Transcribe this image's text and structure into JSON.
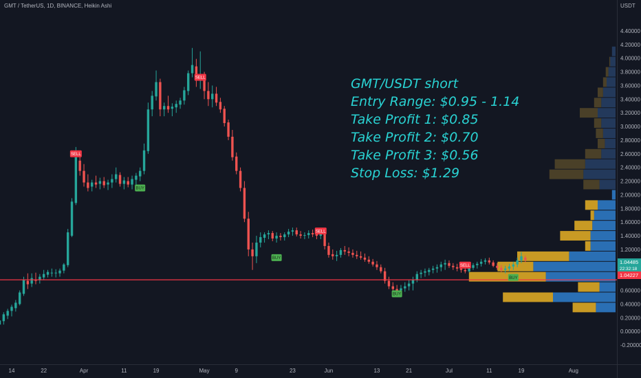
{
  "header": {
    "symbol_line": "GMT / TetherUS, 1D, BINANCE, Heikin Ashi",
    "unit": "USDT"
  },
  "annotation": {
    "lines": [
      "GMT/USDT short",
      "Entry Range: $0.95 - 1.14",
      "Take Profit 1: $0.85",
      "Take Profit 2: $0.70",
      "Take Profit 3: $0.56",
      "Stop Loss: $1.29"
    ]
  },
  "price_tags": {
    "current_price": "1.04485",
    "countdown": "22:32:18",
    "secondary_price": "1.04227"
  },
  "colors": {
    "background": "#131722",
    "up": "#26a69a",
    "down": "#ef5350",
    "support_line": "#f23645",
    "note_text": "#2ad4d4",
    "vp_up": "#2a6fb4",
    "vp_down": "#c89a24",
    "buy_tag": "#4caf50",
    "sell_tag": "#f23645"
  },
  "chart_data": {
    "type": "candlestick",
    "style": "Heikin Ashi",
    "y_ticks": [
      "4.40000",
      "4.20000",
      "4.00000",
      "3.80000",
      "3.60000",
      "3.40000",
      "3.20000",
      "3.00000",
      "2.80000",
      "2.60000",
      "2.40000",
      "2.20000",
      "2.00000",
      "1.80000",
      "1.60000",
      "1.40000",
      "1.20000",
      "1.00000",
      "0.80000",
      "0.60000",
      "0.40000",
      "0.20000",
      "0.00000",
      "-0.20000"
    ],
    "x_ticks": [
      "14",
      "22",
      "Apr",
      "11",
      "19",
      "May",
      "9",
      "23",
      "Jun",
      "13",
      "21",
      "Jul",
      "11",
      "19",
      "Aug"
    ],
    "ylim": [
      -0.28,
      4.52
    ],
    "horizontal_line": 0.755,
    "signals": [
      {
        "label": "SELL",
        "type": "sell",
        "date": "Mar 30",
        "price": 2.6
      },
      {
        "label": "BUY",
        "type": "buy",
        "date": "Apr 15",
        "price": 2.1
      },
      {
        "label": "SELL",
        "type": "sell",
        "date": "Apr 30",
        "price": 3.72
      },
      {
        "label": "BUY",
        "type": "buy",
        "date": "May 19",
        "price": 1.08
      },
      {
        "label": "SELL",
        "type": "sell",
        "date": "May 30",
        "price": 1.47
      },
      {
        "label": "BUY",
        "type": "buy",
        "date": "Jun 18",
        "price": 0.55
      },
      {
        "label": "SELL",
        "type": "sell",
        "date": "Jul 5",
        "price": 0.97
      },
      {
        "label": "BUY",
        "type": "buy",
        "date": "Jul 17",
        "price": 0.79
      }
    ],
    "volume_profile": [
      {
        "price": 4.1,
        "up": 0.2,
        "down": 0.0
      },
      {
        "price": 3.95,
        "up": 0.3,
        "down": 0.05
      },
      {
        "price": 3.8,
        "up": 0.4,
        "down": 0.15
      },
      {
        "price": 3.65,
        "up": 0.5,
        "down": 0.2
      },
      {
        "price": 3.5,
        "up": 0.7,
        "down": 0.3
      },
      {
        "price": 3.35,
        "up": 0.8,
        "down": 0.4
      },
      {
        "price": 3.2,
        "up": 1.0,
        "down": 1.0
      },
      {
        "price": 3.05,
        "up": 0.8,
        "down": 0.4
      },
      {
        "price": 2.9,
        "up": 0.7,
        "down": 0.4
      },
      {
        "price": 2.75,
        "up": 0.6,
        "down": 0.4
      },
      {
        "price": 2.6,
        "up": 0.8,
        "down": 0.9
      },
      {
        "price": 2.45,
        "up": 1.7,
        "down": 1.7
      },
      {
        "price": 2.3,
        "up": 1.8,
        "down": 1.9
      },
      {
        "price": 2.15,
        "up": 0.9,
        "down": 0.9
      },
      {
        "price": 2.0,
        "up": 0.2,
        "down": 0.0
      },
      {
        "price": 1.85,
        "up": 1.0,
        "down": 0.7
      },
      {
        "price": 1.7,
        "up": 1.2,
        "down": 0.2
      },
      {
        "price": 1.55,
        "up": 1.3,
        "down": 1.0
      },
      {
        "price": 1.4,
        "up": 1.4,
        "down": 1.7
      },
      {
        "price": 1.25,
        "up": 1.4,
        "down": 0.3
      },
      {
        "price": 1.1,
        "up": 2.6,
        "down": 2.9
      },
      {
        "price": 0.95,
        "up": 4.6,
        "down": 2.0
      },
      {
        "price": 0.8,
        "up": 3.9,
        "down": 4.3
      },
      {
        "price": 0.65,
        "up": 0.9,
        "down": 1.2
      },
      {
        "price": 0.5,
        "up": 3.5,
        "down": 2.8
      },
      {
        "price": 0.35,
        "up": 1.1,
        "down": 1.3
      }
    ],
    "candles": [
      {
        "d": "Mar 10",
        "o": 0.06,
        "h": 0.12,
        "l": 0.02,
        "c": 0.11
      },
      {
        "d": "Mar 11",
        "o": 0.1,
        "h": 0.18,
        "l": 0.06,
        "c": 0.16
      },
      {
        "d": "Mar 12",
        "o": 0.15,
        "h": 0.28,
        "l": 0.1,
        "c": 0.25
      },
      {
        "d": "Mar 13",
        "o": 0.23,
        "h": 0.33,
        "l": 0.18,
        "c": 0.3
      },
      {
        "d": "Mar 14",
        "o": 0.3,
        "h": 0.39,
        "l": 0.22,
        "c": 0.36
      },
      {
        "d": "Mar 15",
        "o": 0.34,
        "h": 0.46,
        "l": 0.29,
        "c": 0.42
      },
      {
        "d": "Mar 16",
        "o": 0.4,
        "h": 0.6,
        "l": 0.38,
        "c": 0.57
      },
      {
        "d": "Mar 17",
        "o": 0.55,
        "h": 0.8,
        "l": 0.52,
        "c": 0.76
      },
      {
        "d": "Mar 18",
        "o": 0.74,
        "h": 0.85,
        "l": 0.62,
        "c": 0.69
      },
      {
        "d": "Mar 19",
        "o": 0.7,
        "h": 0.85,
        "l": 0.65,
        "c": 0.78
      },
      {
        "d": "Mar 20",
        "o": 0.76,
        "h": 0.86,
        "l": 0.69,
        "c": 0.74
      },
      {
        "d": "Mar 21",
        "o": 0.75,
        "h": 0.84,
        "l": 0.7,
        "c": 0.8
      },
      {
        "d": "Mar 22",
        "o": 0.79,
        "h": 0.9,
        "l": 0.75,
        "c": 0.84
      },
      {
        "d": "Mar 23",
        "o": 0.83,
        "h": 0.9,
        "l": 0.79,
        "c": 0.87
      },
      {
        "d": "Mar 24",
        "o": 0.86,
        "h": 0.92,
        "l": 0.8,
        "c": 0.86
      },
      {
        "d": "Mar 25",
        "o": 0.86,
        "h": 0.91,
        "l": 0.79,
        "c": 0.86
      },
      {
        "d": "Mar 26",
        "o": 0.85,
        "h": 0.92,
        "l": 0.8,
        "c": 0.89
      },
      {
        "d": "Mar 27",
        "o": 0.89,
        "h": 1.0,
        "l": 0.85,
        "c": 0.98
      },
      {
        "d": "Mar 28",
        "o": 0.97,
        "h": 1.5,
        "l": 0.94,
        "c": 1.45
      },
      {
        "d": "Mar 29",
        "o": 1.4,
        "h": 1.95,
        "l": 1.38,
        "c": 1.9
      },
      {
        "d": "Mar 30",
        "o": 1.88,
        "h": 2.7,
        "l": 1.85,
        "c": 2.55
      },
      {
        "d": "Mar 31",
        "o": 2.5,
        "h": 2.62,
        "l": 2.28,
        "c": 2.35
      },
      {
        "d": "Apr 1",
        "o": 2.35,
        "h": 2.45,
        "l": 2.12,
        "c": 2.18
      },
      {
        "d": "Apr 2",
        "o": 2.18,
        "h": 2.3,
        "l": 2.05,
        "c": 2.1
      },
      {
        "d": "Apr 3",
        "o": 2.12,
        "h": 2.22,
        "l": 2.05,
        "c": 2.18
      },
      {
        "d": "Apr 4",
        "o": 2.18,
        "h": 2.28,
        "l": 2.1,
        "c": 2.15
      },
      {
        "d": "Apr 5",
        "o": 2.16,
        "h": 2.25,
        "l": 2.08,
        "c": 2.2
      },
      {
        "d": "Apr 6",
        "o": 2.2,
        "h": 2.26,
        "l": 2.1,
        "c": 2.14
      },
      {
        "d": "Apr 7",
        "o": 2.15,
        "h": 2.22,
        "l": 2.07,
        "c": 2.18
      },
      {
        "d": "Apr 8",
        "o": 2.18,
        "h": 2.3,
        "l": 2.1,
        "c": 2.23
      },
      {
        "d": "Apr 9",
        "o": 2.23,
        "h": 2.4,
        "l": 2.18,
        "c": 2.3
      },
      {
        "d": "Apr 10",
        "o": 2.29,
        "h": 2.33,
        "l": 2.12,
        "c": 2.16
      },
      {
        "d": "Apr 11",
        "o": 2.16,
        "h": 2.26,
        "l": 2.08,
        "c": 2.21
      },
      {
        "d": "Apr 12",
        "o": 2.2,
        "h": 2.26,
        "l": 2.11,
        "c": 2.15
      },
      {
        "d": "Apr 13",
        "o": 2.15,
        "h": 2.28,
        "l": 2.08,
        "c": 2.23
      },
      {
        "d": "Apr 14",
        "o": 2.22,
        "h": 2.32,
        "l": 2.15,
        "c": 2.28
      },
      {
        "d": "Apr 15",
        "o": 2.27,
        "h": 2.4,
        "l": 2.2,
        "c": 2.35
      },
      {
        "d": "Apr 16",
        "o": 2.35,
        "h": 2.75,
        "l": 2.3,
        "c": 2.65
      },
      {
        "d": "Apr 17",
        "o": 2.64,
        "h": 3.35,
        "l": 2.6,
        "c": 3.25
      },
      {
        "d": "Apr 18",
        "o": 3.25,
        "h": 3.52,
        "l": 3.15,
        "c": 3.45
      },
      {
        "d": "Apr 19",
        "o": 3.44,
        "h": 3.82,
        "l": 3.38,
        "c": 3.65
      },
      {
        "d": "Apr 20",
        "o": 3.65,
        "h": 3.7,
        "l": 3.15,
        "c": 3.25
      },
      {
        "d": "Apr 21",
        "o": 3.25,
        "h": 3.35,
        "l": 3.15,
        "c": 3.3
      },
      {
        "d": "Apr 22",
        "o": 3.3,
        "h": 3.45,
        "l": 3.2,
        "c": 3.25
      },
      {
        "d": "Apr 23",
        "o": 3.26,
        "h": 3.34,
        "l": 3.15,
        "c": 3.29
      },
      {
        "d": "Apr 24",
        "o": 3.28,
        "h": 3.38,
        "l": 3.2,
        "c": 3.33
      },
      {
        "d": "Apr 25",
        "o": 3.32,
        "h": 3.42,
        "l": 3.26,
        "c": 3.38
      },
      {
        "d": "Apr 26",
        "o": 3.38,
        "h": 3.58,
        "l": 3.32,
        "c": 3.53
      },
      {
        "d": "Apr 27",
        "o": 3.52,
        "h": 3.82,
        "l": 3.46,
        "c": 3.78
      },
      {
        "d": "Apr 28",
        "o": 3.78,
        "h": 4.15,
        "l": 3.72,
        "c": 3.9
      },
      {
        "d": "Apr 29",
        "o": 3.88,
        "h": 3.99,
        "l": 3.58,
        "c": 3.7
      },
      {
        "d": "Apr 30",
        "o": 3.7,
        "h": 4.1,
        "l": 3.55,
        "c": 3.75
      },
      {
        "d": "May 1",
        "o": 3.76,
        "h": 3.8,
        "l": 3.4,
        "c": 3.52
      },
      {
        "d": "May 2",
        "o": 3.52,
        "h": 3.65,
        "l": 3.3,
        "c": 3.4
      },
      {
        "d": "May 3",
        "o": 3.4,
        "h": 3.6,
        "l": 3.28,
        "c": 3.48
      },
      {
        "d": "May 4",
        "o": 3.48,
        "h": 3.58,
        "l": 3.3,
        "c": 3.35
      },
      {
        "d": "May 5",
        "o": 3.36,
        "h": 3.42,
        "l": 3.2,
        "c": 3.25
      },
      {
        "d": "May 6",
        "o": 3.26,
        "h": 3.3,
        "l": 3.0,
        "c": 3.05
      },
      {
        "d": "May 7",
        "o": 3.06,
        "h": 3.1,
        "l": 2.8,
        "c": 2.85
      },
      {
        "d": "May 8",
        "o": 2.85,
        "h": 2.95,
        "l": 2.5,
        "c": 2.55
      },
      {
        "d": "May 9",
        "o": 2.56,
        "h": 2.62,
        "l": 2.3,
        "c": 2.35
      },
      {
        "d": "May 10",
        "o": 2.35,
        "h": 2.4,
        "l": 2.05,
        "c": 2.1
      },
      {
        "d": "May 11",
        "o": 2.1,
        "h": 2.2,
        "l": 1.6,
        "c": 1.65
      },
      {
        "d": "May 12",
        "o": 1.65,
        "h": 1.75,
        "l": 1.1,
        "c": 1.2
      },
      {
        "d": "May 13",
        "o": 1.2,
        "h": 1.3,
        "l": 0.9,
        "c": 1.1
      },
      {
        "d": "May 14",
        "o": 1.1,
        "h": 1.4,
        "l": 1.0,
        "c": 1.3
      },
      {
        "d": "May 15",
        "o": 1.3,
        "h": 1.45,
        "l": 1.23,
        "c": 1.38
      },
      {
        "d": "May 16",
        "o": 1.37,
        "h": 1.45,
        "l": 1.3,
        "c": 1.42
      },
      {
        "d": "May 17",
        "o": 1.42,
        "h": 1.48,
        "l": 1.35,
        "c": 1.44
      },
      {
        "d": "May 18",
        "o": 1.44,
        "h": 1.47,
        "l": 1.32,
        "c": 1.36
      },
      {
        "d": "May 19",
        "o": 1.36,
        "h": 1.45,
        "l": 1.3,
        "c": 1.4
      },
      {
        "d": "May 20",
        "o": 1.4,
        "h": 1.44,
        "l": 1.33,
        "c": 1.38
      },
      {
        "d": "May 21",
        "o": 1.38,
        "h": 1.45,
        "l": 1.33,
        "c": 1.42
      },
      {
        "d": "May 22",
        "o": 1.42,
        "h": 1.5,
        "l": 1.38,
        "c": 1.46
      },
      {
        "d": "May 23",
        "o": 1.46,
        "h": 1.52,
        "l": 1.4,
        "c": 1.48
      },
      {
        "d": "May 24",
        "o": 1.48,
        "h": 1.52,
        "l": 1.39,
        "c": 1.42
      },
      {
        "d": "May 25",
        "o": 1.42,
        "h": 1.47,
        "l": 1.36,
        "c": 1.4
      },
      {
        "d": "May 26",
        "o": 1.4,
        "h": 1.45,
        "l": 1.35,
        "c": 1.41
      },
      {
        "d": "May 27",
        "o": 1.41,
        "h": 1.48,
        "l": 1.36,
        "c": 1.44
      },
      {
        "d": "May 28",
        "o": 1.44,
        "h": 1.49,
        "l": 1.38,
        "c": 1.42
      },
      {
        "d": "May 29",
        "o": 1.42,
        "h": 1.48,
        "l": 1.35,
        "c": 1.4
      },
      {
        "d": "May 30",
        "o": 1.4,
        "h": 1.5,
        "l": 1.35,
        "c": 1.42
      },
      {
        "d": "May 31",
        "o": 1.42,
        "h": 1.46,
        "l": 1.2,
        "c": 1.25
      },
      {
        "d": "Jun 1",
        "o": 1.25,
        "h": 1.3,
        "l": 1.08,
        "c": 1.12
      },
      {
        "d": "Jun 2",
        "o": 1.13,
        "h": 1.2,
        "l": 1.05,
        "c": 1.1
      },
      {
        "d": "Jun 3",
        "o": 1.1,
        "h": 1.18,
        "l": 1.03,
        "c": 1.12
      },
      {
        "d": "Jun 4",
        "o": 1.12,
        "h": 1.22,
        "l": 1.08,
        "c": 1.19
      },
      {
        "d": "Jun 5",
        "o": 1.19,
        "h": 1.25,
        "l": 1.12,
        "c": 1.17
      },
      {
        "d": "Jun 6",
        "o": 1.17,
        "h": 1.23,
        "l": 1.1,
        "c": 1.15
      },
      {
        "d": "Jun 7",
        "o": 1.15,
        "h": 1.2,
        "l": 1.08,
        "c": 1.12
      },
      {
        "d": "Jun 8",
        "o": 1.12,
        "h": 1.18,
        "l": 1.06,
        "c": 1.1
      },
      {
        "d": "Jun 9",
        "o": 1.1,
        "h": 1.17,
        "l": 1.05,
        "c": 1.08
      },
      {
        "d": "Jun 10",
        "o": 1.08,
        "h": 1.14,
        "l": 1.02,
        "c": 1.05
      },
      {
        "d": "Jun 11",
        "o": 1.05,
        "h": 1.1,
        "l": 0.99,
        "c": 1.02
      },
      {
        "d": "Jun 12",
        "o": 1.02,
        "h": 1.06,
        "l": 0.95,
        "c": 0.98
      },
      {
        "d": "Jun 13",
        "o": 0.98,
        "h": 1.03,
        "l": 0.9,
        "c": 0.94
      },
      {
        "d": "Jun 14",
        "o": 0.94,
        "h": 0.98,
        "l": 0.85,
        "c": 0.88
      },
      {
        "d": "Jun 15",
        "o": 0.88,
        "h": 0.93,
        "l": 0.7,
        "c": 0.74
      },
      {
        "d": "Jun 16",
        "o": 0.74,
        "h": 0.8,
        "l": 0.62,
        "c": 0.66
      },
      {
        "d": "Jun 17",
        "o": 0.66,
        "h": 0.72,
        "l": 0.59,
        "c": 0.62
      },
      {
        "d": "Jun 18",
        "o": 0.62,
        "h": 0.68,
        "l": 0.56,
        "c": 0.6
      },
      {
        "d": "Jun 19",
        "o": 0.6,
        "h": 0.68,
        "l": 0.56,
        "c": 0.63
      },
      {
        "d": "Jun 20",
        "o": 0.63,
        "h": 0.72,
        "l": 0.58,
        "c": 0.66
      },
      {
        "d": "Jun 21",
        "o": 0.66,
        "h": 0.76,
        "l": 0.6,
        "c": 0.7
      },
      {
        "d": "Jun 22",
        "o": 0.7,
        "h": 0.8,
        "l": 0.6,
        "c": 0.76
      },
      {
        "d": "Jun 23",
        "o": 0.76,
        "h": 0.88,
        "l": 0.72,
        "c": 0.84
      },
      {
        "d": "Jun 24",
        "o": 0.84,
        "h": 0.9,
        "l": 0.78,
        "c": 0.86
      },
      {
        "d": "Jun 25",
        "o": 0.86,
        "h": 0.92,
        "l": 0.8,
        "c": 0.88
      },
      {
        "d": "Jun 26",
        "o": 0.87,
        "h": 0.93,
        "l": 0.82,
        "c": 0.9
      },
      {
        "d": "Jun 27",
        "o": 0.9,
        "h": 0.96,
        "l": 0.85,
        "c": 0.92
      },
      {
        "d": "Jun 28",
        "o": 0.92,
        "h": 0.98,
        "l": 0.86,
        "c": 0.94
      },
      {
        "d": "Jun 29",
        "o": 0.94,
        "h": 1.02,
        "l": 0.88,
        "c": 0.98
      },
      {
        "d": "Jun 30",
        "o": 0.98,
        "h": 1.05,
        "l": 0.9,
        "c": 1.0
      },
      {
        "d": "Jul 1",
        "o": 1.0,
        "h": 1.04,
        "l": 0.93,
        "c": 0.96
      },
      {
        "d": "Jul 2",
        "o": 0.96,
        "h": 1.0,
        "l": 0.9,
        "c": 0.94
      },
      {
        "d": "Jul 3",
        "o": 0.94,
        "h": 0.99,
        "l": 0.88,
        "c": 0.92
      },
      {
        "d": "Jul 4",
        "o": 0.92,
        "h": 0.98,
        "l": 0.86,
        "c": 0.9
      },
      {
        "d": "Jul 5",
        "o": 0.9,
        "h": 0.95,
        "l": 0.85,
        "c": 0.88
      },
      {
        "d": "Jul 6",
        "o": 0.88,
        "h": 0.96,
        "l": 0.86,
        "c": 0.93
      },
      {
        "d": "Jul 7",
        "o": 0.93,
        "h": 1.0,
        "l": 0.9,
        "c": 0.97
      },
      {
        "d": "Jul 8",
        "o": 0.97,
        "h": 1.02,
        "l": 0.92,
        "c": 0.99
      },
      {
        "d": "Jul 9",
        "o": 0.99,
        "h": 1.06,
        "l": 0.95,
        "c": 1.02
      },
      {
        "d": "Jul 10",
        "o": 1.02,
        "h": 1.07,
        "l": 0.98,
        "c": 1.04
      },
      {
        "d": "Jul 11",
        "o": 1.04,
        "h": 1.08,
        "l": 0.98,
        "c": 1.01
      },
      {
        "d": "Jul 12",
        "o": 1.01,
        "h": 1.04,
        "l": 0.94,
        "c": 0.96
      },
      {
        "d": "Jul 13",
        "o": 0.96,
        "h": 1.0,
        "l": 0.9,
        "c": 0.93
      },
      {
        "d": "Jul 14",
        "o": 0.93,
        "h": 0.97,
        "l": 0.87,
        "c": 0.9
      },
      {
        "d": "Jul 15",
        "o": 0.9,
        "h": 0.96,
        "l": 0.85,
        "c": 0.92
      },
      {
        "d": "Jul 16",
        "o": 0.92,
        "h": 0.99,
        "l": 0.88,
        "c": 0.95
      },
      {
        "d": "Jul 17",
        "o": 0.95,
        "h": 1.02,
        "l": 0.9,
        "c": 0.98
      },
      {
        "d": "Jul 18",
        "o": 0.98,
        "h": 1.08,
        "l": 0.94,
        "c": 1.04
      },
      {
        "d": "Jul 19",
        "o": 1.04,
        "h": 1.16,
        "l": 1.0,
        "c": 1.1
      },
      {
        "d": "Jul 20",
        "o": 1.08,
        "h": 1.11,
        "l": 1.01,
        "c": 1.045
      }
    ]
  }
}
